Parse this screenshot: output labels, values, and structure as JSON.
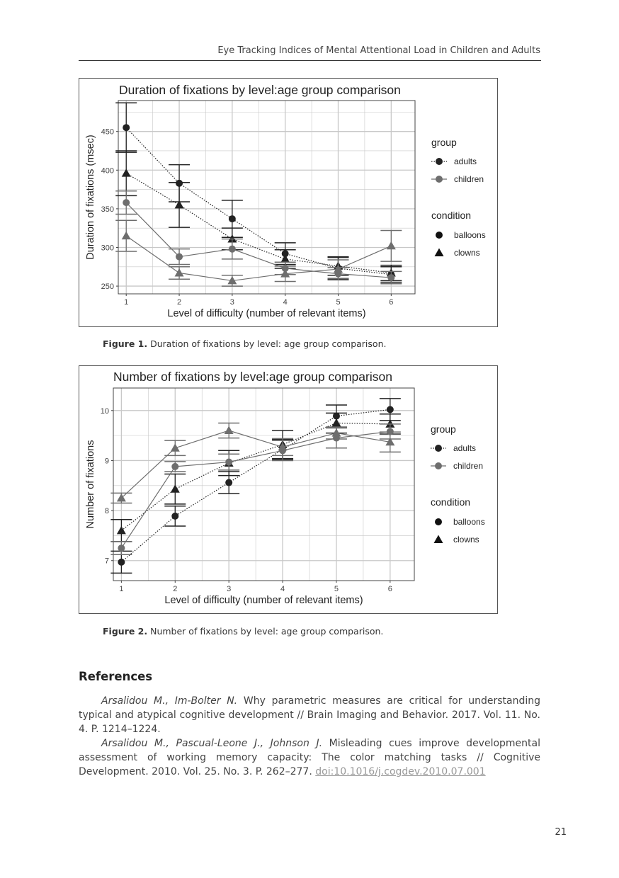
{
  "header": {
    "running_title": "Eye Tracking Indices of Mental Attentional Load in Children and Adults"
  },
  "figure1": {
    "label": "Figure 1.",
    "caption": "Duration of fixations by level: age group comparison.",
    "legend": {
      "group_title": "group",
      "group_items": [
        "adults",
        "children"
      ],
      "condition_title": "condition",
      "condition_items": [
        "balloons",
        "clowns"
      ]
    }
  },
  "figure2": {
    "label": "Figure 2.",
    "caption": "Number of fixations by level: age group comparison.",
    "legend": {
      "group_title": "group",
      "group_items": [
        "adults",
        "children"
      ],
      "condition_title": "condition",
      "condition_items": [
        "balloons",
        "clowns"
      ]
    }
  },
  "chart_data": [
    {
      "type": "line",
      "title": "Duration of fixations by level:age group comparison",
      "xlabel": "Level of difficulty (number of relevant items)",
      "ylabel": "Duration of fixations (msec)",
      "x": [
        1,
        2,
        3,
        4,
        5,
        6
      ],
      "xlim": [
        0.85,
        6.45
      ],
      "ylim": [
        240,
        490
      ],
      "yticks": [
        250,
        300,
        350,
        400,
        450
      ],
      "grid": true,
      "legend_position": "right",
      "series": [
        {
          "group": "adults",
          "condition": "balloons",
          "values": [
            455,
            383,
            337,
            292,
            273,
            265
          ],
          "err": [
            32,
            24,
            24,
            14,
            14,
            10
          ]
        },
        {
          "group": "adults",
          "condition": "clowns",
          "values": [
            396,
            355,
            311,
            285,
            276,
            267
          ],
          "err": [
            29,
            29,
            14,
            12,
            12,
            10
          ]
        },
        {
          "group": "children",
          "condition": "balloons",
          "values": [
            358,
            288,
            298,
            273,
            266,
            261
          ],
          "err": [
            15,
            10,
            13,
            8,
            8,
            8
          ]
        },
        {
          "group": "children",
          "condition": "clowns",
          "values": [
            315,
            267,
            257,
            266,
            272,
            302
          ],
          "err": [
            20,
            8,
            7,
            10,
            12,
            20
          ]
        }
      ]
    },
    {
      "type": "line",
      "title": "Number of fixations by level:age group comparison",
      "xlabel": "Level of difficulty (number of relevant items)",
      "ylabel": "Number of fixations",
      "x": [
        1,
        2,
        3,
        4,
        5,
        6
      ],
      "xlim": [
        0.85,
        6.45
      ],
      "ylim": [
        6.6,
        10.45
      ],
      "yticks": [
        7,
        8,
        9,
        10
      ],
      "grid": true,
      "legend_position": "right",
      "series": [
        {
          "group": "adults",
          "condition": "balloons",
          "values": [
            6.97,
            7.89,
            8.56,
            9.22,
            9.89,
            10.02
          ],
          "err": [
            0.22,
            0.2,
            0.22,
            0.2,
            0.22,
            0.22
          ]
        },
        {
          "group": "adults",
          "condition": "clowns",
          "values": [
            7.6,
            8.43,
            8.95,
            9.32,
            9.75,
            9.73
          ],
          "err": [
            0.22,
            0.3,
            0.25,
            0.28,
            0.2,
            0.2
          ]
        },
        {
          "group": "children",
          "condition": "balloons",
          "values": [
            7.25,
            8.88,
            8.97,
            9.2,
            9.45,
            9.58
          ],
          "err": [
            0.13,
            0.1,
            0.16,
            0.2,
            0.2,
            0.15
          ]
        },
        {
          "group": "children",
          "condition": "clowns",
          "values": [
            8.25,
            9.25,
            9.6,
            9.27,
            9.55,
            9.37
          ],
          "err": [
            0.1,
            0.15,
            0.15,
            0.17,
            0.12,
            0.2
          ]
        }
      ]
    }
  ],
  "references": {
    "heading": "References",
    "items": [
      {
        "authors": "Arsalidou M., Im-Bolter N.",
        "text": " Why parametric measures are critical for understanding typical and atypical cognitive development // Brain Imaging and Behavior. 2017. Vol. 11. No. 4. P. 1214–1224.",
        "doi": ""
      },
      {
        "authors": "Arsalidou M., Pascual-Leone J., Johnson J.",
        "text": " Misleading cues improve developmental assessment of working memory capacity: The color matching tasks // Cognitive Development. 2010. Vol. 25. No. 3. P. 262–277. ",
        "doi": "doi:10.1016/j.cogdev.2010.07.001"
      }
    ]
  },
  "page_number": "21",
  "colors": {
    "adults": "#222222",
    "children": "#6e6e6e",
    "grid": "#c8c8c8",
    "panel_border": "#444444"
  }
}
